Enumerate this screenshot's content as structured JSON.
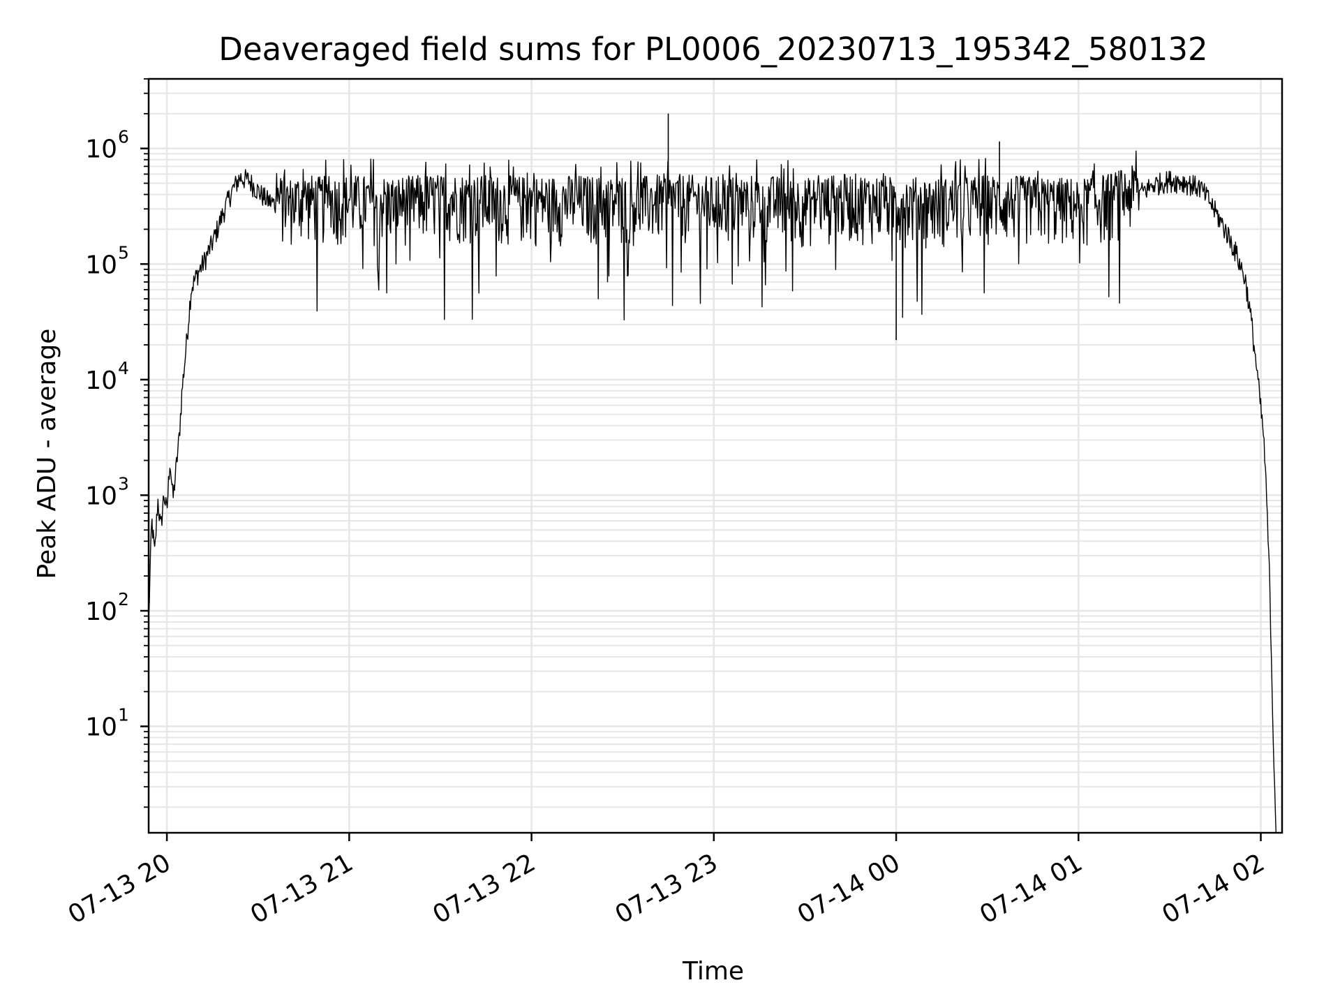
{
  "chart_data": {
    "type": "line",
    "title": "Deaveraged field sums for PL0006_20230713_195342_580132",
    "xlabel": "Time",
    "ylabel": "Peak ADU - average",
    "x_scale": "time",
    "y_scale": "log",
    "xlim": [
      "2023-07-13 19:54",
      "2023-07-14 02:07"
    ],
    "ylim": [
      1.2,
      4000000
    ],
    "x_ticks": [
      "07-13 20",
      "07-13 21",
      "07-13 22",
      "07-13 23",
      "07-14 00",
      "07-14 01",
      "07-14 02"
    ],
    "y_ticks": [
      {
        "base": "10",
        "exp": "1",
        "value": 10
      },
      {
        "base": "10",
        "exp": "2",
        "value": 100
      },
      {
        "base": "10",
        "exp": "3",
        "value": 1000
      },
      {
        "base": "10",
        "exp": "4",
        "value": 10000
      },
      {
        "base": "10",
        "exp": "5",
        "value": 100000
      },
      {
        "base": "10",
        "exp": "6",
        "value": 1000000
      }
    ],
    "grid": true,
    "minor_grid": true,
    "line_color": "#000000",
    "grid_color": "#e6e6e6",
    "series": [
      {
        "x": [
          "2023-07-13 19:54",
          "2023-07-13 19:55",
          "2023-07-13 19:56",
          "2023-07-13 19:57",
          "2023-07-13 19:58",
          "2023-07-13 19:59",
          "2023-07-13 20:00",
          "2023-07-13 20:01",
          "2023-07-13 20:02",
          "2023-07-13 20:04",
          "2023-07-13 20:05",
          "2023-07-13 20:06",
          "2023-07-13 20:08",
          "2023-07-13 20:10",
          "2023-07-13 20:12",
          "2023-07-13 20:15",
          "2023-07-13 20:18",
          "2023-07-13 20:21",
          "2023-07-13 20:24",
          "2023-07-13 20:27",
          "2023-07-13 20:30",
          "2023-07-13 20:33",
          "2023-07-13 20:36",
          "2023-07-13 20:40",
          "2023-07-13 20:45",
          "2023-07-13 20:50",
          "2023-07-13 21:00",
          "2023-07-13 21:15",
          "2023-07-13 21:30",
          "2023-07-13 21:45",
          "2023-07-13 22:00",
          "2023-07-13 22:15",
          "2023-07-13 22:30",
          "2023-07-13 22:45",
          "2023-07-13 23:00",
          "2023-07-13 23:15",
          "2023-07-13 23:30",
          "2023-07-13 23:45",
          "2023-07-14 00:00",
          "2023-07-14 00:15",
          "2023-07-14 00:30",
          "2023-07-14 00:45",
          "2023-07-14 01:00",
          "2023-07-14 01:10",
          "2023-07-14 01:20",
          "2023-07-14 01:25",
          "2023-07-14 01:30",
          "2023-07-14 01:35",
          "2023-07-14 01:40",
          "2023-07-14 01:43",
          "2023-07-14 01:46",
          "2023-07-14 01:49",
          "2023-07-14 01:52",
          "2023-07-14 01:55",
          "2023-07-14 01:57",
          "2023-07-14 01:59",
          "2023-07-14 02:01",
          "2023-07-14 02:02",
          "2023-07-14 02:03",
          "2023-07-14 02:04",
          "2023-07-14 02:05"
        ],
        "y": [
          80,
          600,
          300,
          900,
          500,
          1000,
          700,
          2000,
          900,
          3000,
          8000,
          15000,
          60000,
          80000,
          100000,
          150000,
          250000,
          400000,
          550000,
          520000,
          420000,
          350000,
          320000,
          300000,
          330000,
          310000,
          320000,
          310000,
          330000,
          320000,
          310000,
          320000,
          300000,
          330000,
          310000,
          320000,
          300000,
          330000,
          310000,
          300000,
          320000,
          310000,
          300000,
          330000,
          400000,
          480000,
          520000,
          500000,
          450000,
          350000,
          250000,
          180000,
          120000,
          70000,
          30000,
          10000,
          3000,
          800,
          150,
          10,
          1.2
        ]
      }
    ]
  }
}
